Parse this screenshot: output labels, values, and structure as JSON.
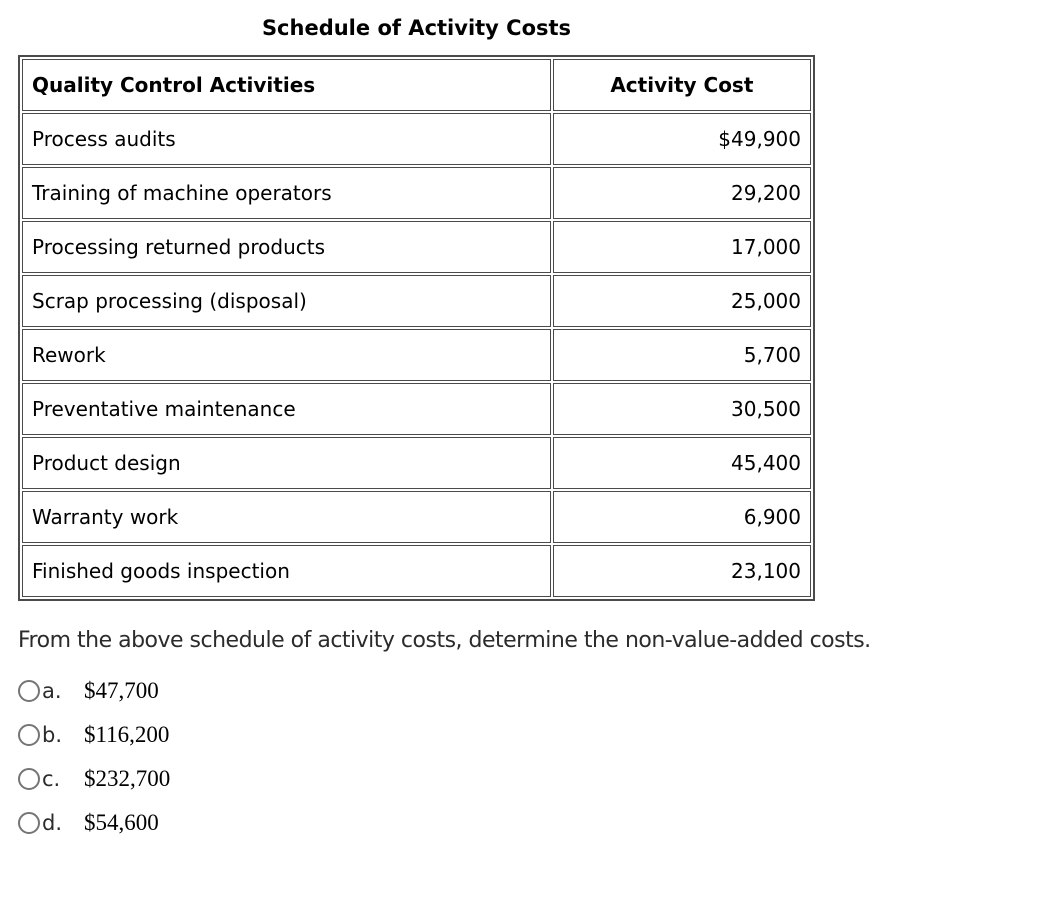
{
  "title": "Schedule of Activity Costs",
  "table": {
    "headers": {
      "activity": "Quality Control Activities",
      "cost": "Activity Cost"
    },
    "rows": [
      {
        "activity": "Process audits",
        "cost": "$49,900"
      },
      {
        "activity": "Training of machine operators",
        "cost": "29,200"
      },
      {
        "activity": "Processing returned products",
        "cost": "17,000"
      },
      {
        "activity": "Scrap processing (disposal)",
        "cost": "25,000"
      },
      {
        "activity": "Rework",
        "cost": "5,700"
      },
      {
        "activity": "Preventative maintenance",
        "cost": "30,500"
      },
      {
        "activity": "Product design",
        "cost": "45,400"
      },
      {
        "activity": "Warranty work",
        "cost": "6,900"
      },
      {
        "activity": "Finished goods inspection",
        "cost": "23,100"
      }
    ]
  },
  "question": "From the above schedule of activity costs, determine the non-value-added costs.",
  "options": [
    {
      "letter": "a.",
      "value": "$47,700"
    },
    {
      "letter": "b.",
      "value": "$116,200"
    },
    {
      "letter": "c.",
      "value": "$232,700"
    },
    {
      "letter": "d.",
      "value": "$54,600"
    }
  ],
  "colors": {
    "table_border": "#4b4b4b",
    "text": "#000000",
    "question_text": "#2b2b2b",
    "radio_outline": "#757575",
    "background": "#ffffff"
  }
}
